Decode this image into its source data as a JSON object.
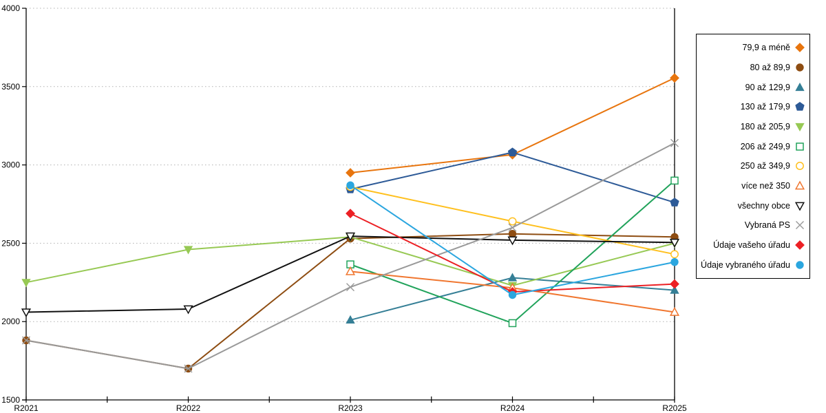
{
  "chart_data": {
    "type": "line",
    "title": "",
    "x_categories": [
      "R2021",
      "R2022",
      "R2023",
      "R2024",
      "R2025"
    ],
    "y_axis": {
      "min": 1500,
      "max": 4000,
      "step": 500,
      "tick_labels": [
        "1500",
        "2000",
        "2500",
        "3000",
        "3500",
        "4000"
      ]
    },
    "grid": "horizontal-dotted",
    "legend_position": "right",
    "axis_color": "#000000",
    "gridline_color": "#b0b0b0",
    "series": [
      {
        "name": "79,9 a méně",
        "marker": "diamond",
        "fill": "solid",
        "color": "#E8750E",
        "values": [
          null,
          null,
          2950,
          3065,
          3555
        ]
      },
      {
        "name": "80 až 89,9",
        "marker": "circle",
        "fill": "solid",
        "color": "#8E4D12",
        "values": [
          1880,
          1700,
          2530,
          2560,
          2540
        ]
      },
      {
        "name": "90 až 129,9",
        "marker": "triangle-up",
        "fill": "solid",
        "color": "#357F96",
        "values": [
          null,
          null,
          2010,
          2280,
          2200
        ]
      },
      {
        "name": "130 až 179,9",
        "marker": "pentagon",
        "fill": "solid",
        "color": "#2D5A97",
        "values": [
          null,
          null,
          2845,
          3080,
          2760
        ]
      },
      {
        "name": "180 až 205,9",
        "marker": "triangle-down",
        "fill": "solid",
        "color": "#97C954",
        "values": [
          2250,
          2460,
          2540,
          2230,
          2500
        ]
      },
      {
        "name": "206 až 249,9",
        "marker": "square",
        "fill": "open",
        "color": "#21A35B",
        "values": [
          null,
          null,
          2365,
          1990,
          2900
        ]
      },
      {
        "name": "250 až 349,9",
        "marker": "circle",
        "fill": "open",
        "color": "#FFC01E",
        "values": [
          null,
          null,
          2860,
          2640,
          2430
        ]
      },
      {
        "name": "více než 350",
        "marker": "triangle-up",
        "fill": "open",
        "color": "#F0762F",
        "values": [
          null,
          null,
          2320,
          2215,
          2060
        ]
      },
      {
        "name": "všechny obce",
        "marker": "triangle-down",
        "fill": "open",
        "color": "#111111",
        "values": [
          2060,
          2080,
          2545,
          2520,
          2505
        ]
      },
      {
        "name": "Vybraná PS",
        "marker": "x",
        "fill": "open",
        "color": "#999999",
        "values": [
          1880,
          1700,
          2220,
          2600,
          3140
        ]
      },
      {
        "name": "Údaje vašeho úřadu",
        "marker": "diamond",
        "fill": "solid",
        "color": "#EC2024",
        "values": [
          null,
          null,
          2690,
          2190,
          2240
        ]
      },
      {
        "name": "Údaje vybraného úřadu",
        "marker": "circle",
        "fill": "solid",
        "color": "#2BA6DF",
        "values": [
          null,
          null,
          2870,
          2170,
          2380
        ]
      }
    ]
  }
}
